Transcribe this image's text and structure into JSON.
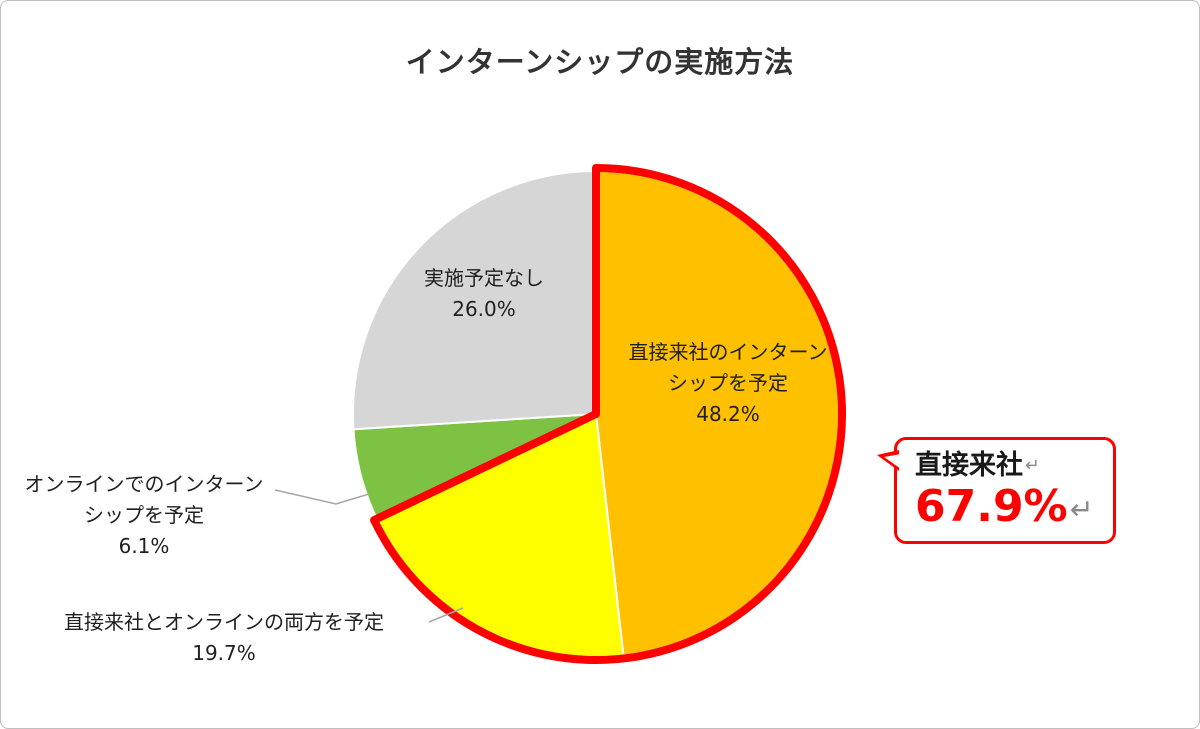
{
  "chart_data": {
    "type": "pie",
    "title": "インターンシップの実施方法",
    "start_angle": "top",
    "direction": "clockwise",
    "slices": [
      {
        "label": "直接来社のインターンシップを予定",
        "value": 48.2,
        "pct_label": "48.2%",
        "color": "#FFC000",
        "label_position": "inside"
      },
      {
        "label": "直接来社とオンラインの両方を予定",
        "value": 19.7,
        "pct_label": "19.7%",
        "color": "#FFFF00",
        "label_position": "outside"
      },
      {
        "label": "オンラインでのインターンシップを予定",
        "value": 6.1,
        "pct_label": "6.1%",
        "color": "#7DC243",
        "label_position": "outside"
      },
      {
        "label": "実施予定なし",
        "value": 26.0,
        "pct_label": "26.0%",
        "color": "#D6D6D6",
        "label_position": "inside"
      }
    ],
    "highlight": {
      "slice_indexes": [
        0,
        1
      ],
      "combined_value": 67.9,
      "outline_color": "#FF0000"
    },
    "colors": {
      "slice_divider": "#FFFFFF",
      "leader_line": "#A6A6A6",
      "title_text": "#333333",
      "callout_border": "#FF0000",
      "callout_value_text": "#FF0000"
    }
  },
  "callout": {
    "line1": "直接来社",
    "line2": "67.9%",
    "return_mark": "↵"
  }
}
